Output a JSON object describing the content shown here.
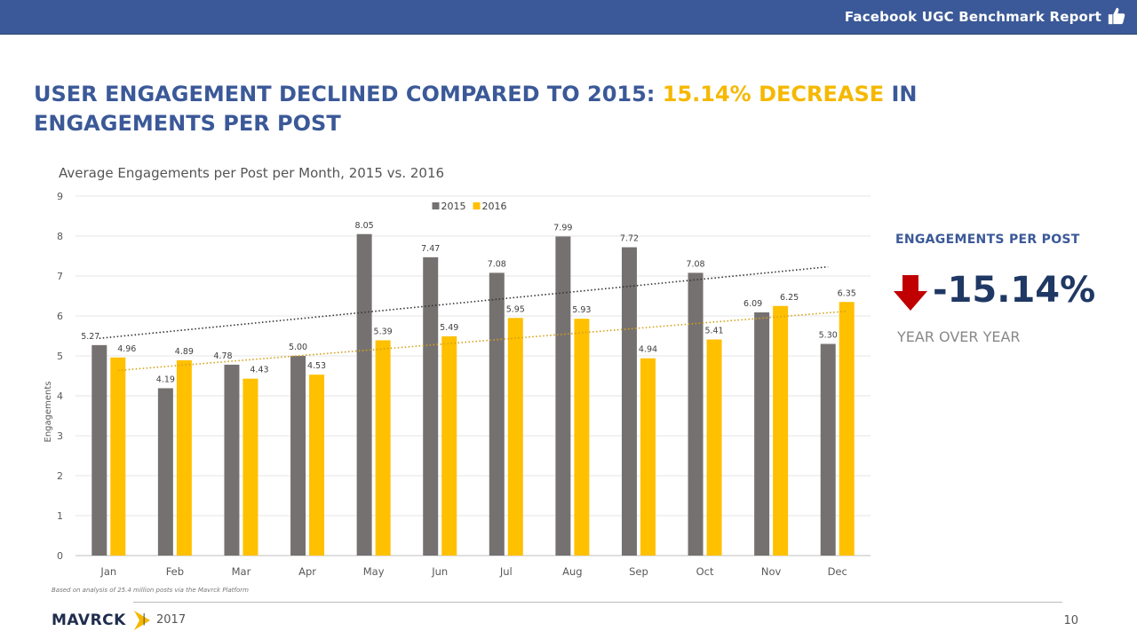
{
  "header": {
    "report_title": "Facebook UGC Benchmark Report"
  },
  "headline": {
    "part1": "User engagement declined compared to 2015: ",
    "highlight": "15.14% decrease",
    "part2": " in engagements per post"
  },
  "kpi": {
    "label": "ENGAGEMENTS PER POST",
    "value": "-15.14%",
    "sub": "YEAR OVER YEAR",
    "arrow_color": "#c00000"
  },
  "chart_data": {
    "type": "bar",
    "title": "Average Engagements per Post per Month, 2015 vs. 2016",
    "xlabel": "",
    "ylabel": "Engagements",
    "ylim": [
      0,
      9
    ],
    "yticks": [
      0,
      1,
      2,
      3,
      4,
      5,
      6,
      7,
      8,
      9
    ],
    "grid": true,
    "legend_position": "top-center",
    "categories": [
      "Jan",
      "Feb",
      "Mar",
      "Apr",
      "May",
      "Jun",
      "Jul",
      "Aug",
      "Sep",
      "Oct",
      "Nov",
      "Dec"
    ],
    "series": [
      {
        "name": "2015",
        "color": "#767171",
        "values": [
          5.27,
          4.19,
          4.78,
          5.0,
          8.05,
          7.47,
          7.08,
          7.99,
          7.72,
          7.08,
          6.09,
          5.3
        ],
        "labels": [
          "5.27",
          "4.19",
          "4.78",
          "5.00",
          "8.05",
          "7.47",
          "7.08",
          "7.99",
          "7.72",
          "7.08",
          "6.09",
          "5.30"
        ],
        "trendline": true,
        "trend_color": "#333333"
      },
      {
        "name": "2016",
        "color": "#ffc000",
        "values": [
          4.96,
          4.89,
          4.43,
          4.53,
          5.39,
          5.49,
          5.95,
          5.93,
          4.94,
          5.41,
          6.25,
          6.35
        ],
        "labels": [
          "4.96",
          "4.89",
          "4.43",
          "4.53",
          "5.39",
          "5.49",
          "5.95",
          "5.93",
          "4.94",
          "5.41",
          "6.25",
          "6.35"
        ],
        "trendline": true,
        "trend_color": "#d4a017"
      }
    ]
  },
  "footer": {
    "note": "Based on analysis of 25.4 million posts via the Mavrck Platform",
    "logo": "MAVRCK",
    "separator": "|",
    "year": "2017",
    "page_number": "10"
  }
}
